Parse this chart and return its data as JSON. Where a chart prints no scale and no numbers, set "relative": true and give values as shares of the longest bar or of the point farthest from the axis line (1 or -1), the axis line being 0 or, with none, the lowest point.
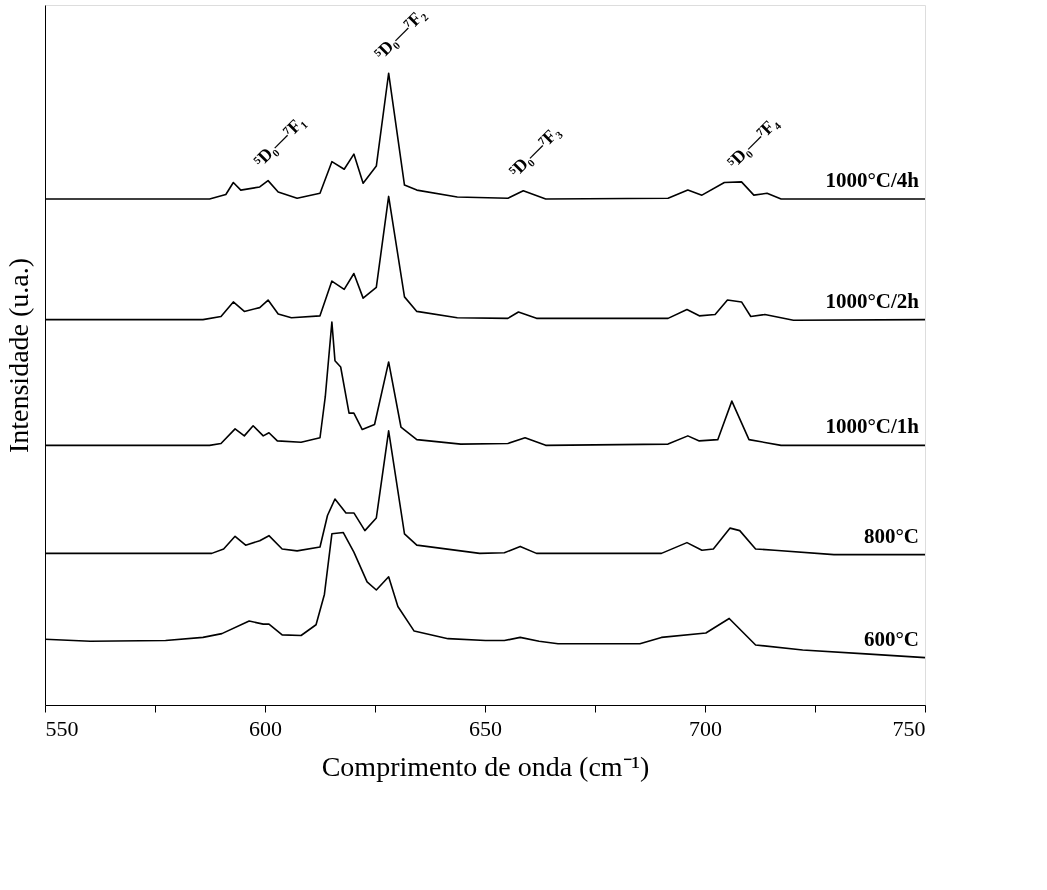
{
  "chart_data": {
    "type": "line",
    "relative": true,
    "xlabel": "Comprimento de onda (cm⁻¹)",
    "ylabel": "Intensidade (u.a.)",
    "xlim": [
      550,
      750
    ],
    "xticks": [
      550,
      {
        "value": 575,
        "label": null
      },
      600,
      {
        "value": 625,
        "label": null
      },
      650,
      {
        "value": 675,
        "label": null
      },
      700,
      {
        "value": 725,
        "label": null
      },
      750
    ],
    "grid": false,
    "legend": false,
    "marker": "none",
    "line_style": "solid",
    "annotations": [
      {
        "text": "⁵D₀—⁷F₁",
        "x": 600.7,
        "y": 0.83
      },
      {
        "text": "⁵D₀—⁷F₂",
        "x": 628.1,
        "y": 1.0
      },
      {
        "text": "⁵D₀—⁷F₃",
        "x": 658.7,
        "y": 0.814
      },
      {
        "text": "⁵D₀—⁷F₄",
        "x": 708.3,
        "y": 0.828
      }
    ],
    "series": [
      {
        "name": "1000°C/4h",
        "color": "#000000",
        "x": [
          550,
          587.4,
          591.1,
          592.8,
          594.5,
          598.8,
          600.7,
          603.0,
          607.3,
          612.5,
          615.2,
          618.0,
          620.2,
          622.3,
          625.3,
          628.1,
          631.7,
          634.5,
          643.7,
          655.2,
          658.7,
          663.8,
          691.6,
          696.1,
          699.3,
          704.4,
          708.3,
          711.1,
          714.1,
          717.3,
          750
        ],
        "values": [
          0.801,
          0.801,
          0.808,
          0.827,
          0.815,
          0.82,
          0.83,
          0.812,
          0.802,
          0.81,
          0.86,
          0.848,
          0.872,
          0.826,
          0.853,
          1.0,
          0.823,
          0.815,
          0.804,
          0.802,
          0.814,
          0.801,
          0.802,
          0.815,
          0.807,
          0.827,
          0.828,
          0.807,
          0.81,
          0.801,
          0.801
        ]
      },
      {
        "name": "1000°C/2h",
        "color": "#000000",
        "x": [
          550,
          582.5,
          585.9,
          590.0,
          592.8,
          595.3,
          598.8,
          600.7,
          603.0,
          606.0,
          612.5,
          615.2,
          618.0,
          620.2,
          622.3,
          625.3,
          628.1,
          631.7,
          634.5,
          643.7,
          655.2,
          657.6,
          661.7,
          691.6,
          695.9,
          698.7,
          702.3,
          705.1,
          708.3,
          710.4,
          713.6,
          720.1,
          750
        ],
        "values": [
          0.61,
          0.61,
          0.61,
          0.615,
          0.638,
          0.623,
          0.629,
          0.641,
          0.619,
          0.613,
          0.616,
          0.671,
          0.658,
          0.683,
          0.644,
          0.661,
          0.805,
          0.646,
          0.623,
          0.613,
          0.612,
          0.622,
          0.612,
          0.612,
          0.626,
          0.616,
          0.618,
          0.641,
          0.638,
          0.615,
          0.618,
          0.609,
          0.61
        ]
      },
      {
        "name": "1000°C/1h",
        "color": "#000000",
        "x": [
          550,
          587.4,
          590.0,
          593.2,
          595.3,
          597.3,
          599.6,
          600.9,
          602.8,
          608.2,
          612.5,
          613.7,
          615.2,
          615.9,
          617.2,
          619.1,
          620.2,
          622.1,
          624.9,
          628.1,
          630.9,
          634.5,
          644.5,
          655.2,
          659.1,
          663.8,
          691.6,
          696.1,
          698.7,
          702.9,
          706.1,
          710.0,
          717.3,
          750
        ],
        "values": [
          0.411,
          0.411,
          0.414,
          0.437,
          0.426,
          0.442,
          0.426,
          0.431,
          0.418,
          0.416,
          0.423,
          0.488,
          0.606,
          0.545,
          0.535,
          0.462,
          0.462,
          0.436,
          0.444,
          0.543,
          0.44,
          0.42,
          0.413,
          0.414,
          0.423,
          0.411,
          0.413,
          0.426,
          0.418,
          0.42,
          0.481,
          0.42,
          0.411,
          0.411
        ]
      },
      {
        "name": "800°C",
        "color": "#000000",
        "x": [
          550,
          587.9,
          590.6,
          593.2,
          595.6,
          598.8,
          600.9,
          603.9,
          607.3,
          612.5,
          614.2,
          615.9,
          618.4,
          620.2,
          622.7,
          625.3,
          628.1,
          631.7,
          634.5,
          648.8,
          654.4,
          658.0,
          661.7,
          690.1,
          695.9,
          699.3,
          701.9,
          705.7,
          707.9,
          711.5,
          715.8,
          729.3,
          750
        ],
        "values": [
          0.24,
          0.24,
          0.247,
          0.267,
          0.253,
          0.26,
          0.268,
          0.247,
          0.244,
          0.25,
          0.3,
          0.326,
          0.304,
          0.304,
          0.276,
          0.296,
          0.434,
          0.271,
          0.253,
          0.24,
          0.241,
          0.251,
          0.24,
          0.24,
          0.257,
          0.245,
          0.247,
          0.28,
          0.276,
          0.247,
          0.245,
          0.238,
          0.238
        ]
      },
      {
        "name": "600°C",
        "color": "#000000",
        "x": [
          550,
          560.3,
          577.4,
          585.9,
          590.2,
          596.4,
          599.6,
          600.9,
          603.9,
          608.2,
          611.6,
          613.5,
          615.2,
          617.8,
          620.2,
          623.2,
          625.3,
          628.1,
          630.2,
          633.9,
          641.6,
          650.1,
          654.4,
          658.0,
          662.3,
          666.6,
          685.2,
          690.1,
          700.2,
          702.3,
          705.5,
          711.5,
          722.2,
          736.5,
          750
        ],
        "values": [
          0.104,
          0.101,
          0.102,
          0.107,
          0.113,
          0.133,
          0.128,
          0.128,
          0.111,
          0.11,
          0.127,
          0.175,
          0.271,
          0.273,
          0.242,
          0.195,
          0.182,
          0.203,
          0.156,
          0.117,
          0.105,
          0.102,
          0.102,
          0.107,
          0.101,
          0.097,
          0.097,
          0.107,
          0.114,
          0.123,
          0.137,
          0.095,
          0.087,
          0.081,
          0.075
        ]
      }
    ]
  }
}
